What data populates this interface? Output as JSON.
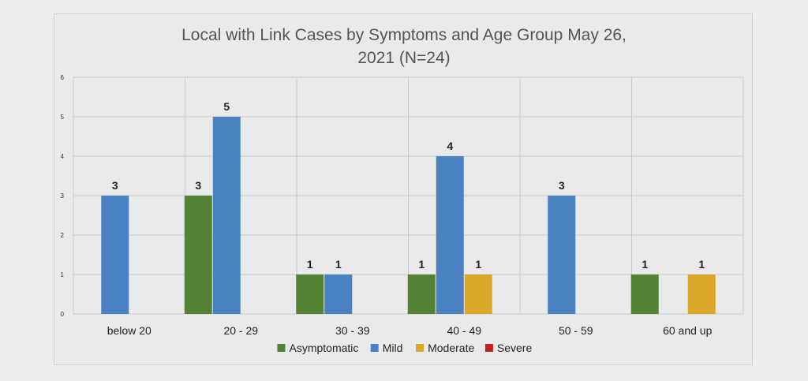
{
  "chart_data": {
    "type": "bar",
    "title_line1": "Local with Link Cases by Symptoms and Age Group May 26,",
    "title_line2": "2021 (N=24)",
    "categories": [
      "below 20",
      "20 - 29",
      "30 - 39",
      "40 - 49",
      "50 - 59",
      "60 and up"
    ],
    "series": [
      {
        "name": "Asymptomatic",
        "color": "#548235",
        "values": [
          0,
          3,
          1,
          1,
          0,
          1
        ]
      },
      {
        "name": "Mild",
        "color": "#4a82c1",
        "values": [
          3,
          5,
          1,
          4,
          3,
          0
        ]
      },
      {
        "name": "Moderate",
        "color": "#dca72a",
        "values": [
          0,
          0,
          0,
          1,
          0,
          1
        ]
      },
      {
        "name": "Severe",
        "color": "#c0221f",
        "values": [
          0,
          0,
          0,
          0,
          0,
          0
        ]
      }
    ],
    "ylim": [
      0,
      6
    ],
    "yticks": [
      "0",
      "1",
      "2",
      "3",
      "4",
      "5",
      "6"
    ],
    "grid": true,
    "legend_position": "bottom"
  }
}
